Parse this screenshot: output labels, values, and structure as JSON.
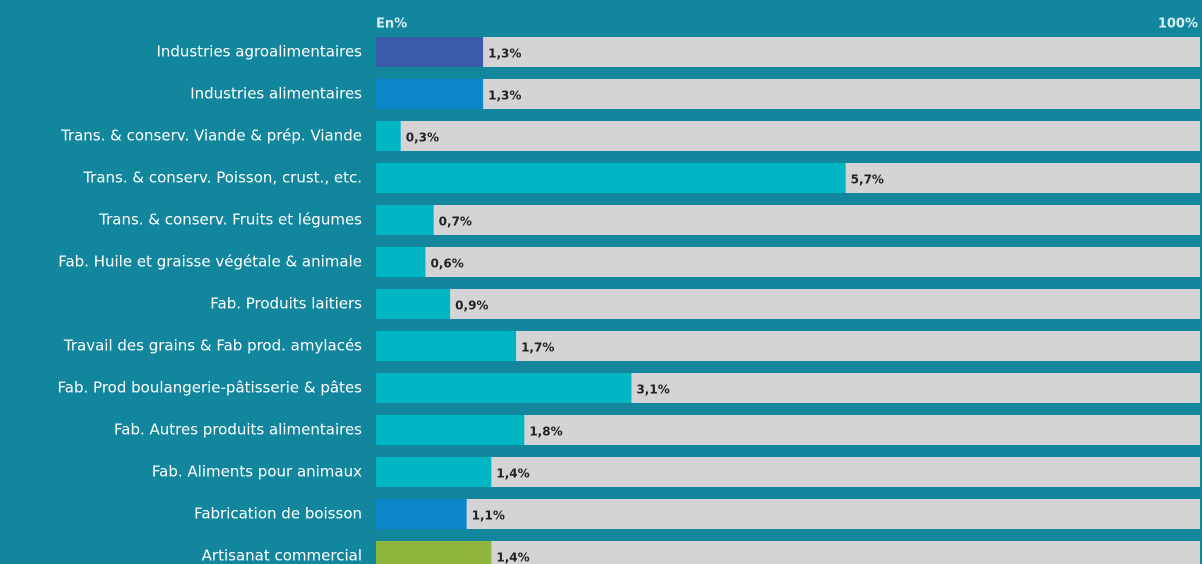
{
  "chart_data": {
    "type": "bar",
    "orientation": "horizontal",
    "axis_label_left": "En%",
    "axis_label_right": "100%",
    "categories": [
      "Industries agroalimentaires",
      "Industries alimentaires",
      "Trans. & conserv. Viande & prép. Viande",
      "Trans. & conserv. Poisson, crust., etc.",
      "Trans. & conserv. Fruits et légumes",
      "Fab. Huile et graisse végétale & animale",
      "Fab. Produits laitiers",
      "Travail des grains & Fab prod. amylacés",
      "Fab. Prod boulangerie-pâtisserie & pâtes",
      "Fab. Autres produits alimentaires",
      "Fab. Aliments pour animaux",
      "Fabrication de boisson",
      "Artisanat commercial"
    ],
    "values": [
      1.3,
      1.3,
      0.3,
      5.7,
      0.7,
      0.6,
      0.9,
      1.7,
      3.1,
      1.8,
      1.4,
      1.1,
      1.4
    ],
    "value_labels": [
      "1,3%",
      "1,3%",
      "0,3%",
      "5,7%",
      "0,7%",
      "0,6%",
      "0,9%",
      "1,7%",
      "3,1%",
      "1,8%",
      "1,4%",
      "1,1%",
      "1,4%"
    ],
    "colors": [
      "#3a5ba9",
      "#0a86c9",
      "#00b6c2",
      "#00b6c2",
      "#00b6c2",
      "#00b6c2",
      "#00b6c2",
      "#00b6c2",
      "#00b6c2",
      "#00b6c2",
      "#00b6c2",
      "#0a86c9",
      "#8fb53c"
    ],
    "track_color": "#d4d4d6",
    "background": "#12869d",
    "xlim": [
      0,
      10
    ]
  }
}
